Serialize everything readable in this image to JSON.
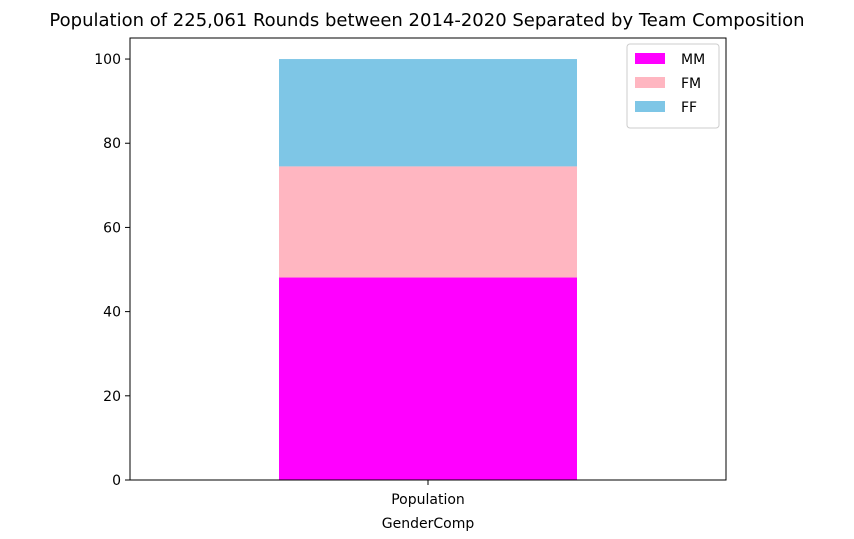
{
  "chart_data": {
    "type": "bar",
    "stacked": true,
    "title": "Population of 225,061 Rounds between 2014-2020 Separated by Team Composition",
    "xlabel": "GenderComp",
    "ylabel": "",
    "categories": [
      "Population"
    ],
    "ylim": [
      0,
      105
    ],
    "yticks": [
      0,
      20,
      40,
      60,
      80,
      100
    ],
    "grid": false,
    "legend_position": "top-right",
    "series": [
      {
        "name": "MM",
        "values": [
          48.1
        ],
        "color": "#ff00ff"
      },
      {
        "name": "FM",
        "values": [
          26.4
        ],
        "color": "#ffb6c1"
      },
      {
        "name": "FF",
        "values": [
          25.5
        ],
        "color": "#7ec6e6"
      }
    ]
  }
}
